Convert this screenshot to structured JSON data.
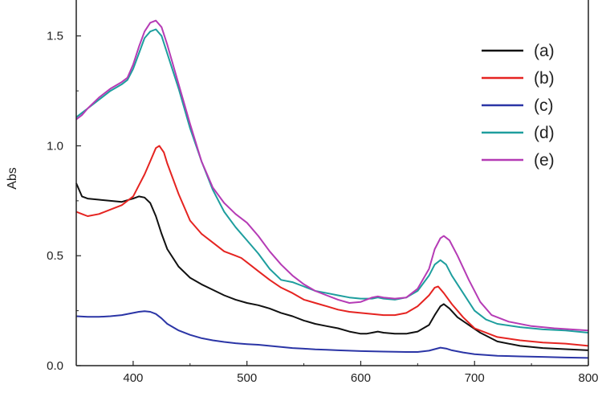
{
  "chart_data": {
    "type": "line",
    "title": "",
    "xlabel": "",
    "ylabel": "Abs",
    "xlim": [
      350,
      800
    ],
    "ylim": [
      0,
      1.7
    ],
    "xticks": [
      400,
      500,
      600,
      700,
      800
    ],
    "xtick_labels": [
      "400",
      "500",
      "600",
      "700",
      "800"
    ],
    "yticks": [
      0,
      0.5,
      1,
      1.5
    ],
    "ytick_labels": [
      "0.0",
      "0.5",
      "1.0",
      "1.5"
    ],
    "grid": false,
    "legend_position": "top-right",
    "series": [
      {
        "name": "(a)",
        "color": "#111111",
        "points": [
          [
            350,
            0.83
          ],
          [
            355,
            0.77
          ],
          [
            360,
            0.76
          ],
          [
            370,
            0.755
          ],
          [
            380,
            0.75
          ],
          [
            390,
            0.745
          ],
          [
            400,
            0.76
          ],
          [
            405,
            0.77
          ],
          [
            410,
            0.765
          ],
          [
            415,
            0.74
          ],
          [
            420,
            0.68
          ],
          [
            425,
            0.6
          ],
          [
            430,
            0.53
          ],
          [
            440,
            0.45
          ],
          [
            450,
            0.4
          ],
          [
            460,
            0.37
          ],
          [
            470,
            0.345
          ],
          [
            480,
            0.32
          ],
          [
            490,
            0.3
          ],
          [
            500,
            0.285
          ],
          [
            510,
            0.275
          ],
          [
            520,
            0.26
          ],
          [
            530,
            0.24
          ],
          [
            540,
            0.225
          ],
          [
            550,
            0.205
          ],
          [
            560,
            0.19
          ],
          [
            570,
            0.18
          ],
          [
            580,
            0.17
          ],
          [
            590,
            0.155
          ],
          [
            600,
            0.145
          ],
          [
            605,
            0.145
          ],
          [
            610,
            0.15
          ],
          [
            615,
            0.155
          ],
          [
            620,
            0.15
          ],
          [
            630,
            0.145
          ],
          [
            640,
            0.145
          ],
          [
            650,
            0.155
          ],
          [
            660,
            0.185
          ],
          [
            665,
            0.23
          ],
          [
            670,
            0.27
          ],
          [
            673,
            0.28
          ],
          [
            678,
            0.26
          ],
          [
            685,
            0.22
          ],
          [
            695,
            0.185
          ],
          [
            705,
            0.15
          ],
          [
            720,
            0.11
          ],
          [
            740,
            0.09
          ],
          [
            760,
            0.08
          ],
          [
            780,
            0.075
          ],
          [
            800,
            0.07
          ]
        ]
      },
      {
        "name": "(b)",
        "color": "#e52421",
        "points": [
          [
            350,
            0.7
          ],
          [
            355,
            0.69
          ],
          [
            360,
            0.68
          ],
          [
            370,
            0.69
          ],
          [
            380,
            0.71
          ],
          [
            390,
            0.73
          ],
          [
            400,
            0.77
          ],
          [
            405,
            0.82
          ],
          [
            410,
            0.87
          ],
          [
            415,
            0.93
          ],
          [
            420,
            0.99
          ],
          [
            423,
            1.0
          ],
          [
            427,
            0.97
          ],
          [
            430,
            0.92
          ],
          [
            440,
            0.78
          ],
          [
            450,
            0.66
          ],
          [
            460,
            0.6
          ],
          [
            470,
            0.56
          ],
          [
            480,
            0.52
          ],
          [
            490,
            0.5
          ],
          [
            495,
            0.49
          ],
          [
            500,
            0.47
          ],
          [
            510,
            0.43
          ],
          [
            520,
            0.39
          ],
          [
            530,
            0.355
          ],
          [
            540,
            0.33
          ],
          [
            550,
            0.3
          ],
          [
            560,
            0.285
          ],
          [
            570,
            0.27
          ],
          [
            580,
            0.255
          ],
          [
            590,
            0.245
          ],
          [
            600,
            0.24
          ],
          [
            610,
            0.235
          ],
          [
            620,
            0.23
          ],
          [
            630,
            0.23
          ],
          [
            640,
            0.24
          ],
          [
            650,
            0.27
          ],
          [
            660,
            0.32
          ],
          [
            665,
            0.355
          ],
          [
            668,
            0.36
          ],
          [
            673,
            0.33
          ],
          [
            680,
            0.28
          ],
          [
            690,
            0.22
          ],
          [
            700,
            0.17
          ],
          [
            720,
            0.13
          ],
          [
            740,
            0.115
          ],
          [
            760,
            0.105
          ],
          [
            780,
            0.1
          ],
          [
            800,
            0.09
          ]
        ]
      },
      {
        "name": "(c)",
        "color": "#2b35a6",
        "points": [
          [
            350,
            0.225
          ],
          [
            360,
            0.222
          ],
          [
            370,
            0.222
          ],
          [
            380,
            0.225
          ],
          [
            390,
            0.23
          ],
          [
            400,
            0.24
          ],
          [
            405,
            0.245
          ],
          [
            410,
            0.248
          ],
          [
            415,
            0.245
          ],
          [
            420,
            0.235
          ],
          [
            425,
            0.215
          ],
          [
            430,
            0.19
          ],
          [
            440,
            0.16
          ],
          [
            450,
            0.14
          ],
          [
            460,
            0.125
          ],
          [
            470,
            0.115
          ],
          [
            480,
            0.108
          ],
          [
            490,
            0.102
          ],
          [
            500,
            0.098
          ],
          [
            510,
            0.095
          ],
          [
            520,
            0.09
          ],
          [
            530,
            0.085
          ],
          [
            540,
            0.08
          ],
          [
            550,
            0.077
          ],
          [
            560,
            0.074
          ],
          [
            570,
            0.072
          ],
          [
            580,
            0.07
          ],
          [
            590,
            0.068
          ],
          [
            600,
            0.066
          ],
          [
            620,
            0.064
          ],
          [
            640,
            0.062
          ],
          [
            650,
            0.062
          ],
          [
            660,
            0.068
          ],
          [
            665,
            0.075
          ],
          [
            670,
            0.082
          ],
          [
            675,
            0.078
          ],
          [
            680,
            0.07
          ],
          [
            690,
            0.06
          ],
          [
            700,
            0.052
          ],
          [
            720,
            0.045
          ],
          [
            740,
            0.042
          ],
          [
            760,
            0.04
          ],
          [
            780,
            0.037
          ],
          [
            800,
            0.035
          ]
        ]
      },
      {
        "name": "(d)",
        "color": "#1e9e9e",
        "points": [
          [
            350,
            1.13
          ],
          [
            355,
            1.15
          ],
          [
            360,
            1.17
          ],
          [
            370,
            1.21
          ],
          [
            380,
            1.25
          ],
          [
            390,
            1.28
          ],
          [
            395,
            1.3
          ],
          [
            400,
            1.35
          ],
          [
            405,
            1.42
          ],
          [
            410,
            1.49
          ],
          [
            415,
            1.52
          ],
          [
            420,
            1.53
          ],
          [
            425,
            1.5
          ],
          [
            430,
            1.42
          ],
          [
            440,
            1.26
          ],
          [
            450,
            1.08
          ],
          [
            460,
            0.93
          ],
          [
            470,
            0.8
          ],
          [
            480,
            0.7
          ],
          [
            490,
            0.63
          ],
          [
            500,
            0.57
          ],
          [
            510,
            0.51
          ],
          [
            520,
            0.44
          ],
          [
            530,
            0.39
          ],
          [
            540,
            0.38
          ],
          [
            550,
            0.36
          ],
          [
            560,
            0.34
          ],
          [
            570,
            0.33
          ],
          [
            580,
            0.32
          ],
          [
            590,
            0.31
          ],
          [
            600,
            0.305
          ],
          [
            610,
            0.305
          ],
          [
            615,
            0.31
          ],
          [
            620,
            0.305
          ],
          [
            630,
            0.3
          ],
          [
            640,
            0.31
          ],
          [
            650,
            0.34
          ],
          [
            660,
            0.41
          ],
          [
            665,
            0.46
          ],
          [
            670,
            0.48
          ],
          [
            675,
            0.46
          ],
          [
            680,
            0.41
          ],
          [
            690,
            0.33
          ],
          [
            700,
            0.25
          ],
          [
            710,
            0.21
          ],
          [
            720,
            0.19
          ],
          [
            740,
            0.175
          ],
          [
            760,
            0.165
          ],
          [
            780,
            0.16
          ],
          [
            800,
            0.15
          ]
        ]
      },
      {
        "name": "(e)",
        "color": "#b53bb5",
        "points": [
          [
            350,
            1.12
          ],
          [
            355,
            1.14
          ],
          [
            360,
            1.17
          ],
          [
            370,
            1.22
          ],
          [
            380,
            1.26
          ],
          [
            390,
            1.29
          ],
          [
            395,
            1.31
          ],
          [
            400,
            1.37
          ],
          [
            405,
            1.45
          ],
          [
            410,
            1.52
          ],
          [
            415,
            1.56
          ],
          [
            420,
            1.57
          ],
          [
            425,
            1.54
          ],
          [
            430,
            1.46
          ],
          [
            440,
            1.28
          ],
          [
            450,
            1.1
          ],
          [
            460,
            0.93
          ],
          [
            470,
            0.81
          ],
          [
            480,
            0.74
          ],
          [
            490,
            0.69
          ],
          [
            500,
            0.65
          ],
          [
            510,
            0.59
          ],
          [
            520,
            0.52
          ],
          [
            530,
            0.46
          ],
          [
            540,
            0.41
          ],
          [
            550,
            0.37
          ],
          [
            560,
            0.34
          ],
          [
            570,
            0.32
          ],
          [
            580,
            0.3
          ],
          [
            590,
            0.285
          ],
          [
            600,
            0.29
          ],
          [
            610,
            0.31
          ],
          [
            615,
            0.315
          ],
          [
            620,
            0.31
          ],
          [
            630,
            0.305
          ],
          [
            640,
            0.31
          ],
          [
            650,
            0.35
          ],
          [
            660,
            0.44
          ],
          [
            665,
            0.53
          ],
          [
            670,
            0.58
          ],
          [
            673,
            0.59
          ],
          [
            678,
            0.57
          ],
          [
            685,
            0.5
          ],
          [
            695,
            0.39
          ],
          [
            705,
            0.29
          ],
          [
            715,
            0.23
          ],
          [
            730,
            0.2
          ],
          [
            750,
            0.18
          ],
          [
            770,
            0.17
          ],
          [
            800,
            0.16
          ]
        ]
      }
    ]
  }
}
